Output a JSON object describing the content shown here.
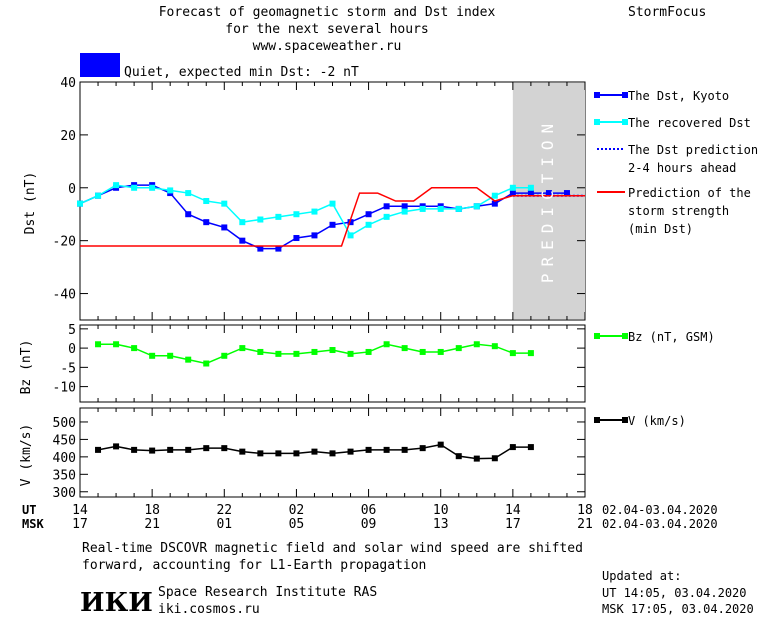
{
  "header": {
    "title_lines": [
      "Forecast of geomagnetic storm and Dst index",
      "for the next several hours",
      "www.spaceweather.ru"
    ],
    "brand": "StormFocus",
    "status_text": "Quiet, expected min Dst: -2 nT",
    "status_color": "#0000ff"
  },
  "footer": {
    "note_lines": [
      "Real-time DSCOVR magnetic field and solar wind speed are shifted",
      "forward, accounting for L1-Earth propagation"
    ],
    "logo_text": "ИКИ",
    "institute": "Space Research Institute RAS",
    "site": "iki.cosmos.ru",
    "updated_title": "Updated at:",
    "updated_ut": "UT  14:05, 03.04.2020",
    "updated_msk": "MSK 17:05, 03.04.2020"
  },
  "chart_data": [
    {
      "type": "line",
      "ylabel": "Dst (nT)",
      "ylim": [
        -50,
        40
      ],
      "yticks": [
        "40",
        "20",
        "0",
        "-20",
        "-40"
      ],
      "prediction_label": "PREDICTION",
      "prediction_shade": "#d3d3d3",
      "x_unit": "hours from 14 UT 02.04.2020",
      "xlim": [
        0,
        28
      ],
      "series": [
        {
          "name": "The Dst, Kyoto",
          "color": "#0000ff",
          "style": "line-square",
          "x": [
            0,
            1,
            2,
            3,
            4,
            5,
            6,
            7,
            8,
            9,
            10,
            11,
            12,
            13,
            14,
            15,
            16,
            17,
            18,
            19,
            20,
            21,
            22,
            23,
            24,
            25,
            26,
            27
          ],
          "y": [
            -6,
            -3,
            0,
            1,
            1,
            -2,
            -10,
            -13,
            -15,
            -20,
            -23,
            -23,
            -19,
            -18,
            -14,
            -13,
            -10,
            -7,
            -7,
            -7,
            -7,
            -8,
            -7,
            -6,
            -2,
            -2,
            -2,
            -2
          ]
        },
        {
          "name": "The recovered Dst",
          "color": "#00ffff",
          "style": "line-square",
          "x": [
            0,
            1,
            2,
            3,
            4,
            5,
            6,
            7,
            8,
            9,
            10,
            11,
            12,
            13,
            14,
            15,
            16,
            17,
            18,
            19,
            20,
            21,
            22,
            23,
            24,
            25
          ],
          "y": [
            -6,
            -3,
            1,
            0,
            0,
            -1,
            -2,
            -5,
            -6,
            -13,
            -12,
            -11,
            -10,
            -9,
            -6,
            -18,
            -14,
            -11,
            -9,
            -8,
            -8,
            -8,
            -7,
            -3,
            0,
            0
          ]
        },
        {
          "name": "The Dst prediction 2-4 hours ahead",
          "color": "#0000ff",
          "style": "dotted",
          "x": [
            24,
            25,
            26,
            27,
            28
          ],
          "y": [
            -3,
            -3,
            -3,
            -3,
            -3
          ]
        },
        {
          "name": "Prediction of the storm strength (min Dst)",
          "color": "#ff0000",
          "style": "line",
          "x": [
            0,
            14.5,
            15.5,
            16.5,
            17.5,
            18.5,
            19.5,
            20,
            21,
            22,
            23,
            24,
            25,
            26,
            27,
            28
          ],
          "y": [
            -22,
            -22,
            -2,
            -2,
            -5,
            -5,
            0,
            0,
            0,
            0,
            -5,
            -3,
            -3,
            -3,
            -3,
            -3
          ]
        }
      ],
      "legend": [
        {
          "lines": [
            "The Dst, Kyoto"
          ],
          "color": "#0000ff",
          "style": "line-square"
        },
        {
          "lines": [
            "The recovered Dst"
          ],
          "color": "#00ffff",
          "style": "line-square"
        },
        {
          "lines": [
            "The Dst prediction",
            "2-4 hours ahead"
          ],
          "color": "#0000ff",
          "style": "dotted"
        },
        {
          "lines": [
            "Prediction of the",
            "storm strength",
            "(min Dst)"
          ],
          "color": "#ff0000",
          "style": "line"
        }
      ]
    },
    {
      "type": "line",
      "ylabel": "Bz (nT)",
      "ylim": [
        -14,
        6
      ],
      "yticks": [
        "5",
        "0",
        "-5",
        "-10"
      ],
      "series": [
        {
          "name": "Bz (nT, GSM)",
          "color": "#00ff00",
          "x": [
            1,
            2,
            3,
            4,
            5,
            6,
            7,
            8,
            9,
            10,
            11,
            12,
            13,
            14,
            15,
            16,
            17,
            18,
            19,
            20,
            21,
            22,
            23,
            24,
            25
          ],
          "y": [
            1,
            1,
            0,
            -2,
            -2,
            -3,
            -4,
            -2,
            0,
            -1,
            -1.5,
            -1.5,
            -1,
            -0.5,
            -1.5,
            -1,
            1,
            0,
            -1,
            -1,
            0,
            1,
            0.5,
            -1.3,
            -1.3
          ]
        }
      ]
    },
    {
      "type": "line",
      "ylabel": "V (km/s)",
      "ylim": [
        285,
        540
      ],
      "yticks": [
        "500",
        "450",
        "400",
        "350",
        "300"
      ],
      "series": [
        {
          "name": "V (km/s)",
          "color": "#000000",
          "x": [
            1,
            2,
            3,
            4,
            5,
            6,
            7,
            8,
            9,
            10,
            11,
            12,
            13,
            14,
            15,
            16,
            17,
            18,
            19,
            20,
            21,
            22,
            23,
            24,
            25
          ],
          "y": [
            420,
            430,
            420,
            418,
            420,
            420,
            425,
            425,
            415,
            410,
            410,
            410,
            415,
            410,
            415,
            420,
            420,
            420,
            425,
            435,
            402,
            395,
            396,
            428,
            428
          ]
        }
      ]
    }
  ],
  "x_axis": {
    "ut_label": "UT",
    "msk_label": "MSK",
    "ut_ticks": [
      "14",
      "18",
      "22",
      "02",
      "06",
      "10",
      "14",
      "18"
    ],
    "msk_ticks": [
      "17",
      "21",
      "01",
      "05",
      "09",
      "13",
      "17",
      "21"
    ],
    "date_range_ut": "02.04-03.04.2020",
    "date_range_msk": "02.04-03.04.2020"
  }
}
